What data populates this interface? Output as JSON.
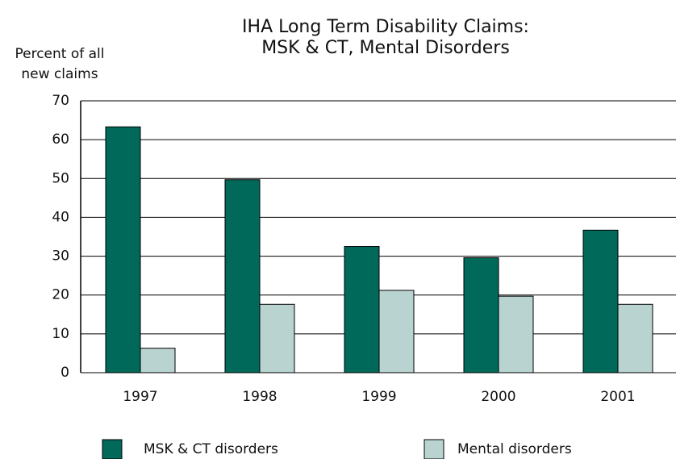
{
  "chart_data": {
    "type": "bar",
    "title": [
      "IHA Long Term Disability Claims:",
      "MSK & CT, Mental Disorders"
    ],
    "y_label": [
      "Percent of all",
      "new claims"
    ],
    "categories": [
      "1997",
      "1998",
      "1999",
      "2000",
      "2001"
    ],
    "series": [
      {
        "name": "MSK & CT disorders",
        "color": "#00695a",
        "values": [
          63.3,
          49.7,
          32.5,
          29.6,
          36.7
        ]
      },
      {
        "name": "Mental disorders",
        "color": "#b9d3d0",
        "values": [
          6.3,
          17.6,
          21.2,
          19.7,
          17.6
        ]
      }
    ],
    "ylim": [
      0,
      70
    ],
    "yticks": [
      0,
      10,
      20,
      30,
      40,
      50,
      60,
      70
    ],
    "grid": true
  }
}
